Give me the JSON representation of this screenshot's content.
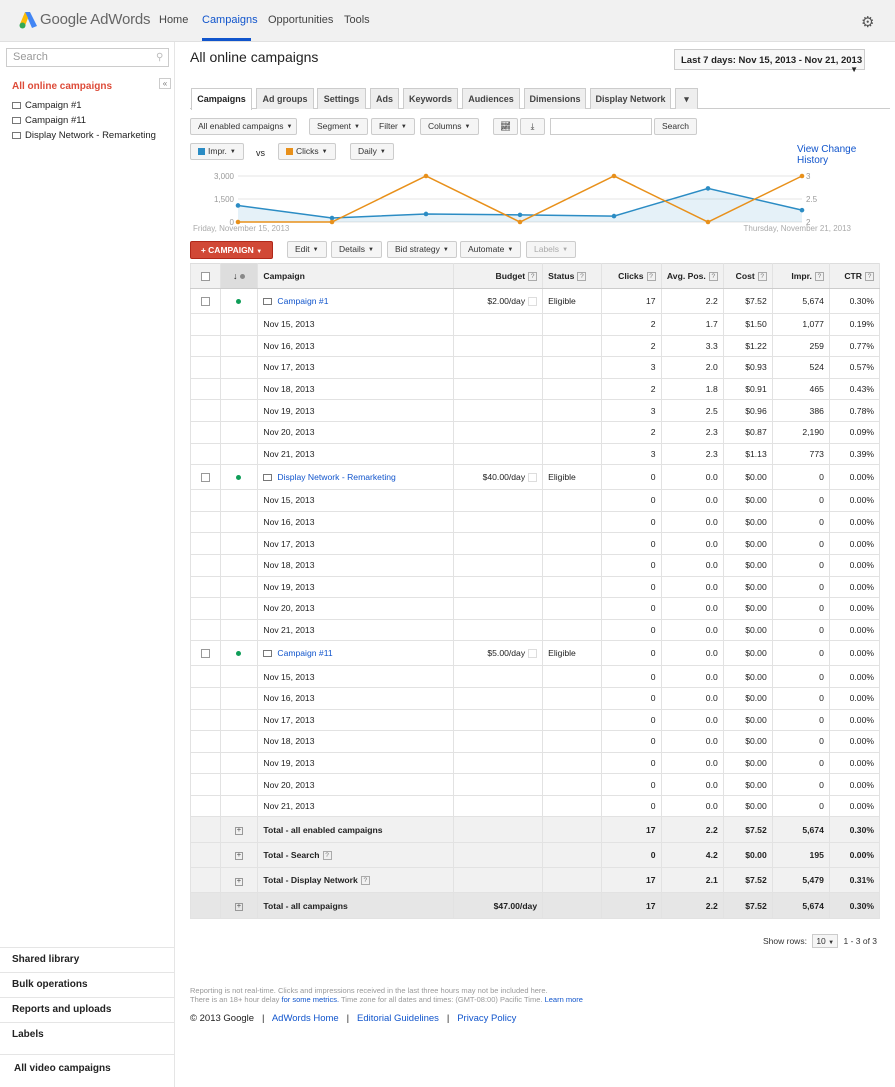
{
  "header": {
    "logo_text": "Google AdWords",
    "nav": [
      "Home",
      "Campaigns",
      "Opportunities",
      "Tools"
    ],
    "active_nav": "Campaigns"
  },
  "sidebar": {
    "search_placeholder": "Search",
    "title": "All online campaigns",
    "collapse_label": "«",
    "items": [
      "Campaign #1",
      "Campaign #11",
      "Display Network - Remarketing"
    ],
    "bottom": [
      "Shared library",
      "Bulk operations",
      "Reports and uploads",
      "Labels",
      "All video campaigns"
    ]
  },
  "main": {
    "title": "All online campaigns",
    "date_range": "Last 7 days: Nov 15, 2013 - Nov 21, 2013",
    "tabs": [
      "Campaigns",
      "Ad groups",
      "Settings",
      "Ads",
      "Keywords",
      "Audiences",
      "Dimensions",
      "Display Network"
    ],
    "toolbar": {
      "filter_campaigns": "All enabled campaigns",
      "segment": "Segment",
      "filter": "Filter",
      "columns": "Columns",
      "search_button": "Search"
    },
    "chart_controls": {
      "metric1": "Impr.",
      "vs": "vs",
      "metric2": "Clicks",
      "granularity": "Daily",
      "view_change_history": "View Change History"
    },
    "actions": {
      "new_campaign": "+ CAMPAIGN",
      "edit": "Edit",
      "details": "Details",
      "bid_strategy": "Bid strategy",
      "automate": "Automate",
      "labels": "Labels"
    }
  },
  "chart_data": {
    "type": "line",
    "x": [
      "Nov 15, 2013",
      "Nov 16, 2013",
      "Nov 17, 2013",
      "Nov 18, 2013",
      "Nov 19, 2013",
      "Nov 20, 2013",
      "Nov 21, 2013"
    ],
    "series": [
      {
        "name": "Impr.",
        "axis": "left",
        "color": "#2b8cc4",
        "values": [
          1077,
          259,
          524,
          465,
          386,
          2190,
          773
        ]
      },
      {
        "name": "Clicks",
        "axis": "right",
        "color": "#e8901a",
        "values": [
          2,
          2,
          3,
          2,
          3,
          2,
          3
        ]
      }
    ],
    "y_left_ticks": [
      "3,000",
      "1,500",
      "0"
    ],
    "y_right_ticks": [
      "3",
      "2.5",
      "2"
    ],
    "ylim_left": [
      0,
      3000
    ],
    "ylim_right": [
      2,
      3
    ],
    "x_start_label": "Friday, November 15, 2013",
    "x_end_label": "Thursday, November 21, 2013",
    "grid": true
  },
  "table": {
    "headers": [
      "Campaign",
      "Budget",
      "Status",
      "Clicks",
      "Avg. Pos.",
      "Cost",
      "Impr.",
      "CTR"
    ],
    "campaigns": [
      {
        "name": "Campaign #1",
        "budget": "$2.00/day",
        "status": "Eligible",
        "clicks": "17",
        "avg_pos": "2.2",
        "cost": "$7.52",
        "impr": "5,674",
        "ctr": "0.30%",
        "days": [
          [
            "Nov 15, 2013",
            "2",
            "1.7",
            "$1.50",
            "1,077",
            "0.19%"
          ],
          [
            "Nov 16, 2013",
            "2",
            "3.3",
            "$1.22",
            "259",
            "0.77%"
          ],
          [
            "Nov 17, 2013",
            "3",
            "2.0",
            "$0.93",
            "524",
            "0.57%"
          ],
          [
            "Nov 18, 2013",
            "2",
            "1.8",
            "$0.91",
            "465",
            "0.43%"
          ],
          [
            "Nov 19, 2013",
            "3",
            "2.5",
            "$0.96",
            "386",
            "0.78%"
          ],
          [
            "Nov 20, 2013",
            "2",
            "2.3",
            "$0.87",
            "2,190",
            "0.09%"
          ],
          [
            "Nov 21, 2013",
            "3",
            "2.3",
            "$1.13",
            "773",
            "0.39%"
          ]
        ]
      },
      {
        "name": "Display Network - Remarketing",
        "budget": "$40.00/day",
        "status": "Eligible",
        "clicks": "0",
        "avg_pos": "0.0",
        "cost": "$0.00",
        "impr": "0",
        "ctr": "0.00%",
        "days": [
          [
            "Nov 15, 2013",
            "0",
            "0.0",
            "$0.00",
            "0",
            "0.00%"
          ],
          [
            "Nov 16, 2013",
            "0",
            "0.0",
            "$0.00",
            "0",
            "0.00%"
          ],
          [
            "Nov 17, 2013",
            "0",
            "0.0",
            "$0.00",
            "0",
            "0.00%"
          ],
          [
            "Nov 18, 2013",
            "0",
            "0.0",
            "$0.00",
            "0",
            "0.00%"
          ],
          [
            "Nov 19, 2013",
            "0",
            "0.0",
            "$0.00",
            "0",
            "0.00%"
          ],
          [
            "Nov 20, 2013",
            "0",
            "0.0",
            "$0.00",
            "0",
            "0.00%"
          ],
          [
            "Nov 21, 2013",
            "0",
            "0.0",
            "$0.00",
            "0",
            "0.00%"
          ]
        ]
      },
      {
        "name": "Campaign #11",
        "budget": "$5.00/day",
        "status": "Eligible",
        "clicks": "0",
        "avg_pos": "0.0",
        "cost": "$0.00",
        "impr": "0",
        "ctr": "0.00%",
        "days": [
          [
            "Nov 15, 2013",
            "0",
            "0.0",
            "$0.00",
            "0",
            "0.00%"
          ],
          [
            "Nov 16, 2013",
            "0",
            "0.0",
            "$0.00",
            "0",
            "0.00%"
          ],
          [
            "Nov 17, 2013",
            "0",
            "0.0",
            "$0.00",
            "0",
            "0.00%"
          ],
          [
            "Nov 18, 2013",
            "0",
            "0.0",
            "$0.00",
            "0",
            "0.00%"
          ],
          [
            "Nov 19, 2013",
            "0",
            "0.0",
            "$0.00",
            "0",
            "0.00%"
          ],
          [
            "Nov 20, 2013",
            "0",
            "0.0",
            "$0.00",
            "0",
            "0.00%"
          ],
          [
            "Nov 21, 2013",
            "0",
            "0.0",
            "$0.00",
            "0",
            "0.00%"
          ]
        ]
      }
    ],
    "totals": [
      {
        "label": "Total - all enabled campaigns",
        "budget": "",
        "clicks": "17",
        "avg_pos": "2.2",
        "cost": "$7.52",
        "impr": "5,674",
        "ctr": "0.30%",
        "help": false
      },
      {
        "label": "Total - Search",
        "budget": "",
        "clicks": "0",
        "avg_pos": "4.2",
        "cost": "$0.00",
        "impr": "195",
        "ctr": "0.00%",
        "help": true
      },
      {
        "label": "Total - Display Network",
        "budget": "",
        "clicks": "17",
        "avg_pos": "2.1",
        "cost": "$7.52",
        "impr": "5,479",
        "ctr": "0.31%",
        "help": true
      },
      {
        "label": "Total - all campaigns",
        "budget": "$47.00/day",
        "clicks": "17",
        "avg_pos": "2.2",
        "cost": "$7.52",
        "impr": "5,674",
        "ctr": "0.30%",
        "help": false
      }
    ]
  },
  "pagination": {
    "show_rows_label": "Show rows:",
    "rows": "10",
    "range": "1 - 3 of 3"
  },
  "footer": {
    "note_line1": "Reporting is not real-time. Clicks and impressions received in the last three hours may not be included here.",
    "note_line2_pre": "There is an 18+ hour delay",
    "note_line2_link": "for some metrics.",
    "note_line2_mid": "Time zone for all dates and times: (GMT-08:00) Pacific Time.",
    "note_line2_learn": "Learn more",
    "copyright": "© 2013 Google",
    "links": [
      "AdWords Home",
      "Editorial Guidelines",
      "Privacy Policy"
    ],
    "separator": "|"
  }
}
